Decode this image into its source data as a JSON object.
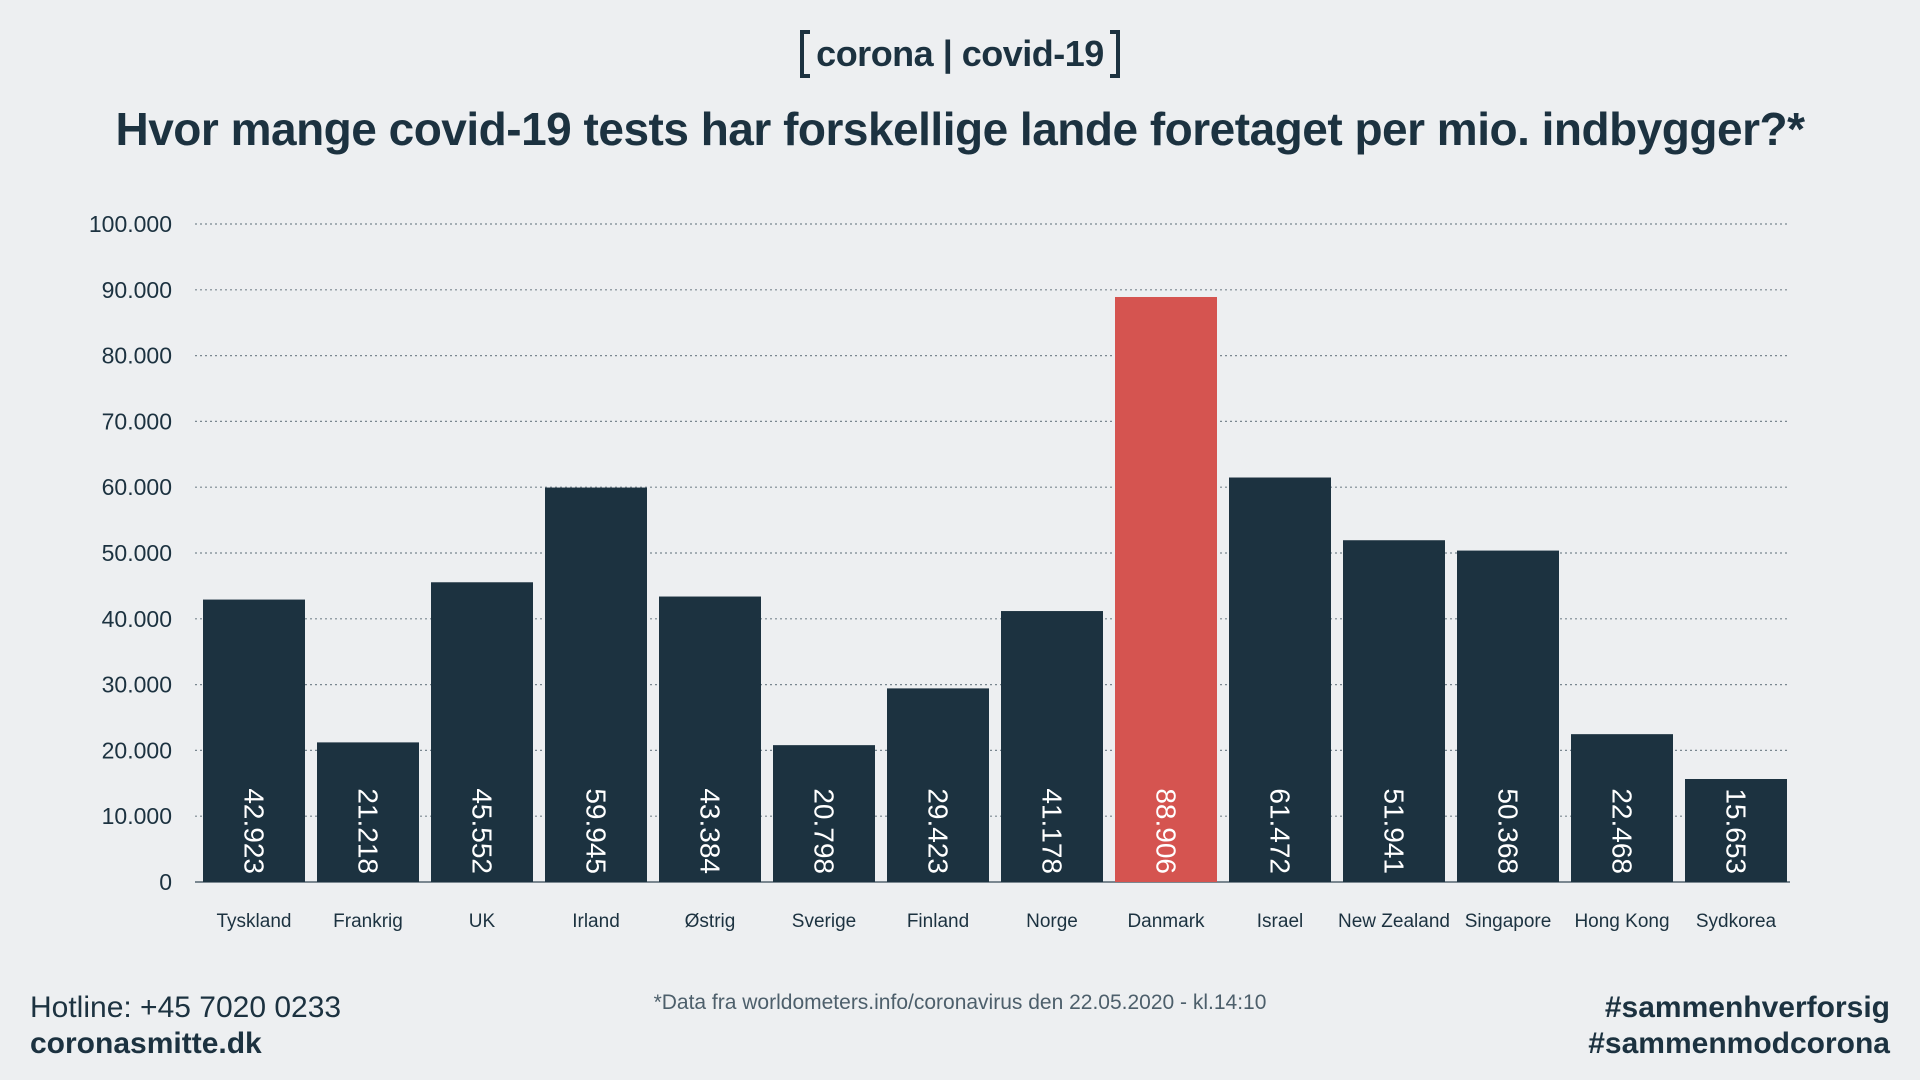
{
  "brand": {
    "text": "corona | covid-19"
  },
  "chart_data": {
    "type": "bar",
    "title": "Hvor mange covid-19 tests har forskellige lande foretaget per mio. indbygger?*",
    "xlabel": "",
    "ylabel": "",
    "ylim": [
      0,
      100000
    ],
    "yticks": [
      0,
      10000,
      20000,
      30000,
      40000,
      50000,
      60000,
      70000,
      80000,
      90000,
      100000
    ],
    "ytick_labels": [
      "0",
      "10.000",
      "20.000",
      "30.000",
      "40.000",
      "50.000",
      "60.000",
      "70.000",
      "80.000",
      "90.000",
      "100.000"
    ],
    "grid": true,
    "categories": [
      "Tyskland",
      "Frankrig",
      "UK",
      "Irland",
      "Østrig",
      "Sverige",
      "Finland",
      "Norge",
      "Danmark",
      "Israel",
      "New Zealand",
      "Singapore",
      "Hong Kong",
      "Sydkorea"
    ],
    "values": [
      42923,
      21218,
      45552,
      59945,
      43384,
      20798,
      29423,
      41178,
      88906,
      61472,
      51941,
      50368,
      22468,
      15653
    ],
    "value_labels": [
      "42.923",
      "21.218",
      "45.552",
      "59.945",
      "43.384",
      "20.798",
      "29.423",
      "41.178",
      "88.906",
      "61.472",
      "51.941",
      "50.368",
      "22.468",
      "15.653"
    ],
    "highlight_category": "Danmark",
    "bar_color": "#1c3240",
    "highlight_color": "#d55450",
    "label_color": "#ffffff"
  },
  "footer": {
    "hotline": "Hotline: +45 7020 0233",
    "website": "coronasmitte.dk",
    "source_note": "*Data fra worldometers.info/coronavirus den 22.05.2020 - kl.14:10",
    "hashtag_1": "#sammenhverforsig",
    "hashtag_2": "#sammenmodcorona"
  }
}
